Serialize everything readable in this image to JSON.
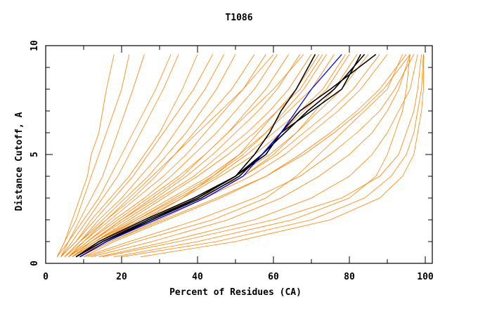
{
  "chart_data": {
    "type": "line",
    "title": "T1086",
    "xlabel": "Percent of Residues (CA)",
    "ylabel": "Distance Cutoff, A",
    "xlim": [
      0,
      100
    ],
    "ylim": [
      0,
      10
    ],
    "x_ticks": [
      "0",
      "20",
      "40",
      "60",
      "80",
      "100"
    ],
    "y_ticks": [
      "0",
      "5",
      "10"
    ],
    "grid": false,
    "y_levels": [
      0.3,
      1,
      2,
      3,
      4,
      5,
      6,
      7,
      8,
      9.6
    ],
    "colors": {
      "other": "#ff8000",
      "highlight": "#000000",
      "selected": "#0000ff"
    },
    "series_other": [
      [
        3,
        5,
        7,
        9,
        11,
        12,
        14,
        15,
        16,
        18
      ],
      [
        3,
        6,
        9,
        12,
        15,
        17,
        19,
        21,
        23,
        26
      ],
      [
        4,
        7,
        11,
        15,
        19,
        22,
        25,
        28,
        31,
        35
      ],
      [
        4,
        8,
        13,
        18,
        23,
        27,
        31,
        35,
        39,
        44
      ],
      [
        5,
        9,
        15,
        21,
        27,
        32,
        37,
        41,
        45,
        50
      ],
      [
        5,
        10,
        17,
        24,
        31,
        37,
        42,
        47,
        52,
        58
      ],
      [
        6,
        11,
        19,
        27,
        35,
        42,
        48,
        53,
        58,
        64
      ],
      [
        6,
        12,
        21,
        30,
        39,
        46,
        53,
        59,
        64,
        70
      ],
      [
        7,
        13,
        23,
        33,
        43,
        51,
        58,
        64,
        70,
        76
      ],
      [
        7,
        14,
        25,
        36,
        46,
        55,
        62,
        68,
        74,
        80
      ],
      [
        8,
        15,
        27,
        39,
        50,
        59,
        66,
        72,
        78,
        85
      ],
      [
        8,
        16,
        29,
        42,
        54,
        63,
        70,
        77,
        83,
        90
      ],
      [
        9,
        17,
        31,
        45,
        58,
        67,
        75,
        82,
        88,
        95
      ],
      [
        3,
        5,
        8,
        10,
        12,
        14,
        16,
        18,
        20,
        22
      ],
      [
        4,
        6,
        10,
        14,
        17,
        20,
        23,
        26,
        29,
        33
      ],
      [
        4,
        8,
        12,
        17,
        22,
        26,
        30,
        33,
        36,
        40
      ],
      [
        5,
        9,
        14,
        20,
        25,
        30,
        34,
        38,
        42,
        47
      ],
      [
        6,
        10,
        16,
        23,
        29,
        34,
        39,
        44,
        49,
        55
      ],
      [
        6,
        11,
        18,
        26,
        33,
        39,
        45,
        50,
        55,
        61
      ],
      [
        7,
        12,
        20,
        29,
        37,
        44,
        50,
        56,
        61,
        67
      ],
      [
        7,
        13,
        22,
        31,
        40,
        48,
        55,
        61,
        67,
        73
      ],
      [
        8,
        14,
        24,
        35,
        45,
        53,
        60,
        67,
        73,
        79
      ],
      [
        9,
        16,
        28,
        40,
        52,
        61,
        68,
        75,
        81,
        88
      ],
      [
        10,
        18,
        32,
        46,
        58,
        68,
        76,
        83,
        89,
        96
      ],
      [
        5,
        9,
        16,
        22,
        28,
        34,
        40,
        46,
        52,
        60
      ],
      [
        6,
        12,
        20,
        28,
        36,
        42,
        48,
        54,
        60,
        68
      ],
      [
        7,
        13,
        24,
        34,
        44,
        52,
        58,
        63,
        68,
        74
      ],
      [
        8,
        15,
        26,
        36,
        44,
        51,
        56,
        61,
        66,
        72
      ],
      [
        9,
        17,
        30,
        42,
        52,
        60,
        66,
        71,
        76,
        82
      ],
      [
        15,
        35,
        60,
        78,
        88,
        93,
        95,
        97,
        98,
        99
      ],
      [
        20,
        45,
        70,
        84,
        91,
        95,
        97,
        98,
        99,
        99.5
      ],
      [
        25,
        50,
        75,
        88,
        94,
        97,
        98,
        99,
        99.5,
        99.6
      ],
      [
        18,
        40,
        65,
        80,
        87,
        90,
        92,
        94,
        95,
        96
      ],
      [
        12,
        28,
        48,
        62,
        72,
        80,
        86,
        90,
        93,
        96
      ],
      [
        14,
        32,
        55,
        70,
        80,
        86,
        90,
        93,
        96,
        98
      ],
      [
        10,
        22,
        40,
        55,
        67,
        75,
        82,
        88,
        92,
        97
      ],
      [
        11,
        24,
        44,
        58,
        66,
        72,
        78,
        84,
        90,
        94
      ]
    ],
    "series_highlight": [
      [
        8,
        15,
        28,
        40,
        50,
        55,
        59,
        62,
        66,
        71
      ],
      [
        8,
        15,
        27,
        40,
        50,
        58,
        62,
        70,
        78,
        83
      ],
      [
        8,
        14,
        26,
        39,
        50,
        57,
        62,
        67,
        75,
        87
      ],
      [
        9,
        16,
        28,
        41,
        51,
        57,
        63,
        69,
        76,
        84
      ]
    ],
    "series_selected": [
      9,
      16,
      29,
      42,
      52,
      57,
      62,
      66,
      70,
      78
    ]
  }
}
